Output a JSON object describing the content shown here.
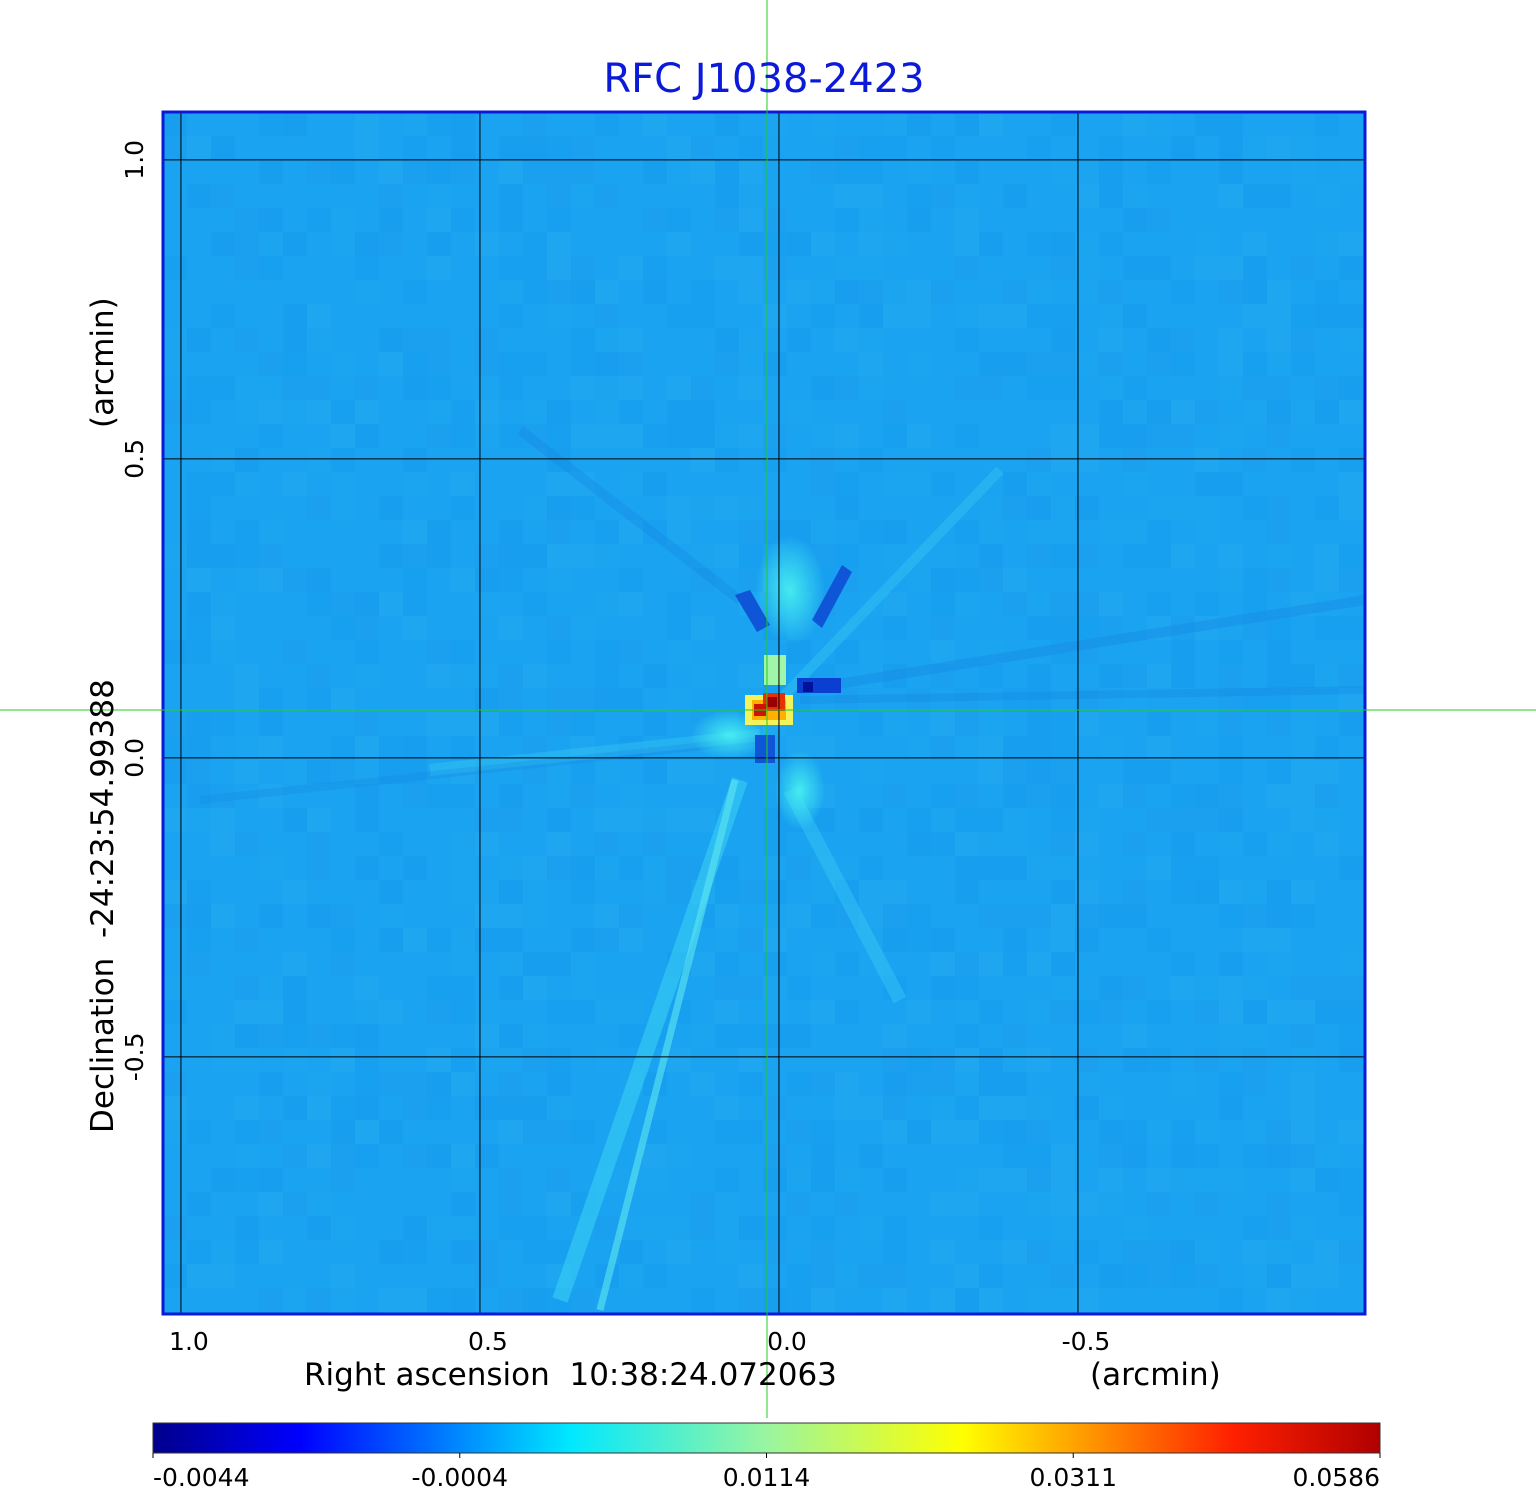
{
  "chart_data": {
    "type": "heatmap",
    "title": "RFC J1038-2423",
    "x_axis": {
      "label": "Right ascension  10:38:24.072063",
      "unit": "(arcmin)",
      "ticks": [
        1.0,
        0.5,
        0.0,
        -0.5
      ],
      "tick_labels": [
        "1.0",
        "0.5",
        "0.0",
        "-0.5"
      ],
      "range": [
        1.03,
        -0.98
      ]
    },
    "y_axis": {
      "label": "Declination  -24:23:54.99388",
      "unit": "(arcmin)",
      "ticks": [
        1.0,
        0.5,
        0.0,
        -0.5
      ],
      "tick_labels": [
        "1.0",
        "0.5",
        "0.0",
        "-0.5"
      ],
      "range": [
        -0.93,
        1.08
      ]
    },
    "grid": true,
    "crosshair": {
      "x": 0.02,
      "y": 0.08,
      "color": "#22cc22"
    },
    "peak": {
      "x": 0.0,
      "y": 0.08,
      "value": 0.0586
    },
    "colorbar": {
      "position": "bottom",
      "colormap": "jet",
      "tick_labels": [
        "-0.0044",
        "-0.0004",
        "0.0114",
        "0.0311",
        "0.0586"
      ]
    },
    "colors": {
      "background_field": "#1aa3f0",
      "frame": "#0b1ad8",
      "title": "#0b1ad8",
      "grid": "#000000"
    }
  }
}
